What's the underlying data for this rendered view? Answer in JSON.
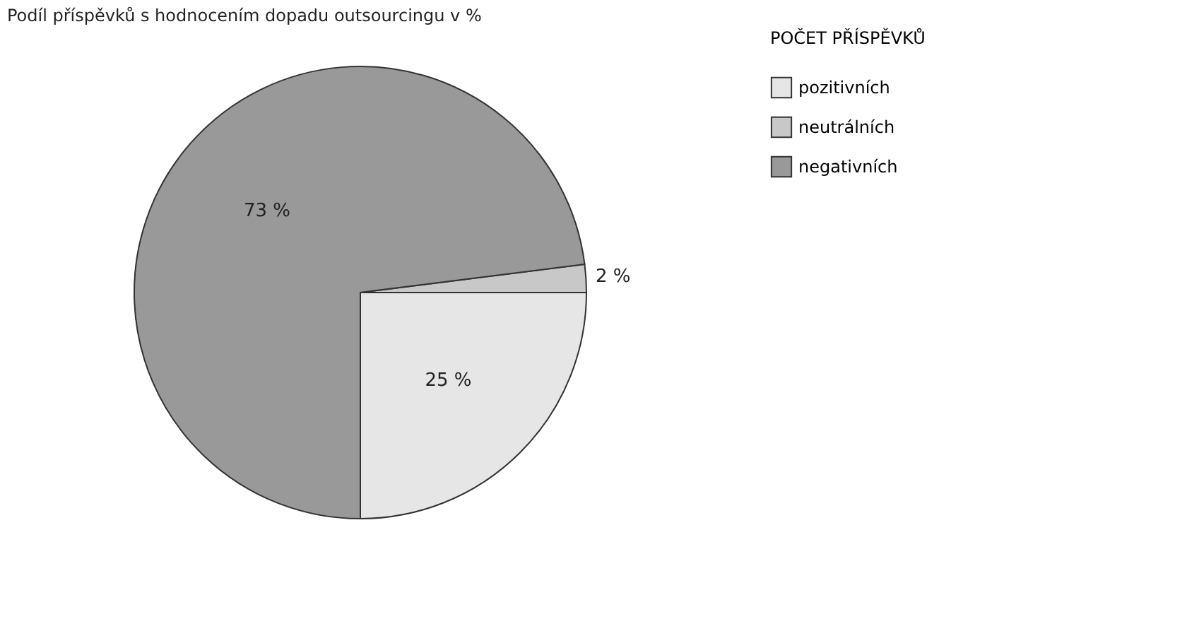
{
  "chart_data": {
    "type": "pie",
    "title": "Podíl příspěvků s hodnocením dopadu outsourcingu v %",
    "categories": [
      "pozitivních",
      "neutrálních",
      "negativních"
    ],
    "values": [
      25,
      2,
      73
    ],
    "colors": [
      "#e6e6e6",
      "#c8c8c8",
      "#999999"
    ],
    "value_labels": [
      "25 %",
      "2 %",
      "73 %"
    ],
    "legend_title": "POČET PŘÍSPĚVKŮ",
    "legend": "right"
  }
}
